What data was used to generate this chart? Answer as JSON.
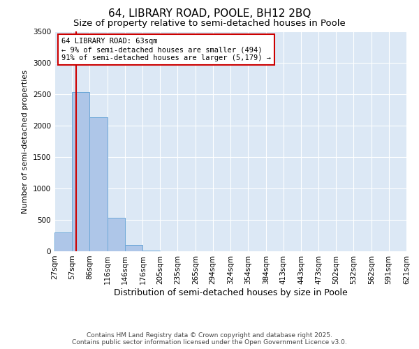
{
  "title": "64, LIBRARY ROAD, POOLE, BH12 2BQ",
  "subtitle": "Size of property relative to semi-detached houses in Poole",
  "xlabel": "Distribution of semi-detached houses by size in Poole",
  "ylabel": "Number of semi-detached properties",
  "bins": [
    "27sqm",
    "57sqm",
    "86sqm",
    "116sqm",
    "146sqm",
    "176sqm",
    "205sqm",
    "235sqm",
    "265sqm",
    "294sqm",
    "324sqm",
    "354sqm",
    "384sqm",
    "413sqm",
    "443sqm",
    "473sqm",
    "502sqm",
    "532sqm",
    "562sqm",
    "591sqm",
    "621sqm"
  ],
  "bin_edges": [
    27,
    57,
    86,
    116,
    146,
    176,
    205,
    235,
    265,
    294,
    324,
    354,
    384,
    413,
    443,
    473,
    502,
    532,
    562,
    591,
    621
  ],
  "bar_heights": [
    300,
    2530,
    2130,
    530,
    100,
    10,
    0,
    0,
    0,
    0,
    0,
    0,
    0,
    0,
    0,
    0,
    0,
    0,
    0,
    0
  ],
  "bar_color": "#aec6e8",
  "bar_edgecolor": "#6ea8d8",
  "property_sqm": 63,
  "property_line_color": "#cc0000",
  "annotation_line1": "64 LIBRARY ROAD: 63sqm",
  "annotation_line2": "← 9% of semi-detached houses are smaller (494)",
  "annotation_line3": "91% of semi-detached houses are larger (5,179) →",
  "annotation_box_color": "#cc0000",
  "ylim": [
    0,
    3500
  ],
  "yticks": [
    0,
    500,
    1000,
    1500,
    2000,
    2500,
    3000,
    3500
  ],
  "footer_line1": "Contains HM Land Registry data © Crown copyright and database right 2025.",
  "footer_line2": "Contains public sector information licensed under the Open Government Licence v3.0.",
  "bg_color": "#dce8f5",
  "fig_bg_color": "#ffffff",
  "title_fontsize": 11,
  "subtitle_fontsize": 9.5,
  "tick_fontsize": 7.5,
  "annot_fontsize": 7.5
}
